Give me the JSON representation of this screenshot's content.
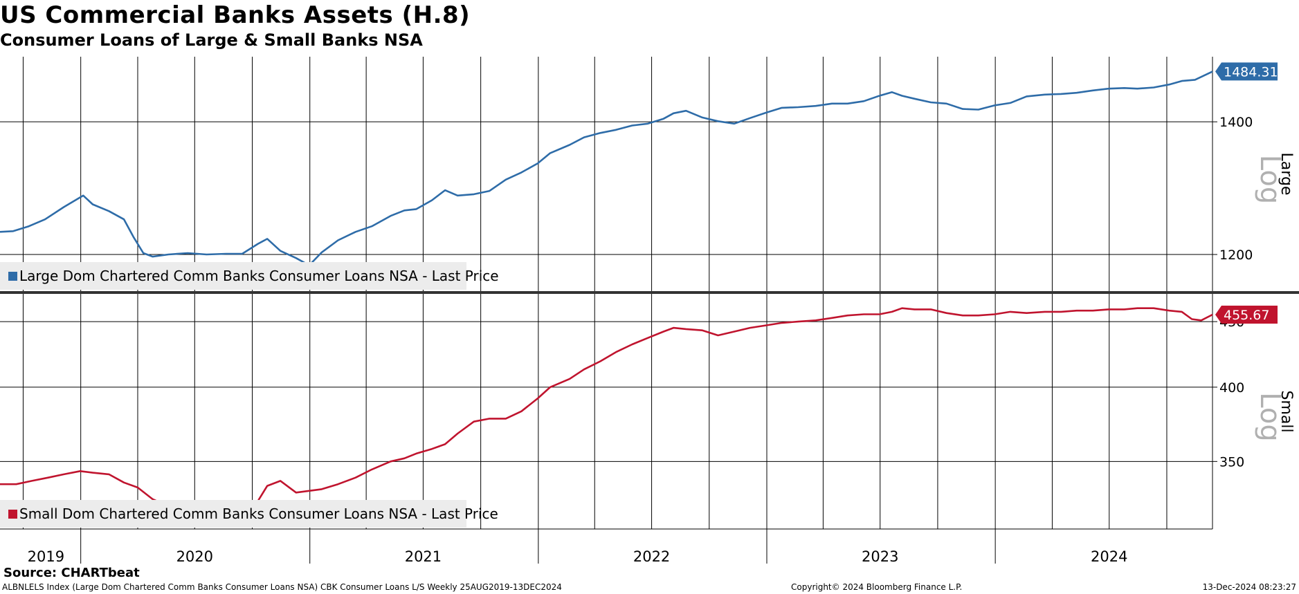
{
  "header": {
    "title": "US Commercial Banks Assets (H.8)",
    "subtitle": "Consumer Loans of Large & Small Banks NSA"
  },
  "footer": {
    "source": "Source: CHARTbeat",
    "description": "ALBNLELS Index (Large Dom Chartered Comm Banks Consumer Loans NSA) CBK Consumer Loans L/S  Weekly 25AUG2019-13DEC2024",
    "copyright": "Copyright© 2024 Bloomberg Finance L.P.",
    "timestamp": "13-Dec-2024 08:23:27"
  },
  "colors": {
    "large": "#2e6ca8",
    "small": "#c0142e",
    "grid": "#000000",
    "legend_bg": "#ececec",
    "log_text": "#b0b0b0"
  },
  "chart_data": [
    {
      "type": "line",
      "panel_label": "Large",
      "scale_label": "Log",
      "scale": "log",
      "legend": "Large Dom Chartered Comm Banks Consumer Loans NSA - Last Price",
      "legend_position": "bottom-left",
      "last_value_label": "1484.31",
      "yticks": [
        1200,
        1400
      ],
      "ylim": [
        1150,
        1510
      ],
      "xlim": [
        "2019-08-25",
        "2024-12-13"
      ],
      "grid": true,
      "series": [
        {
          "name": "Large Dom Chartered Comm Banks Consumer Loans NSA - Last Price",
          "x": [
            "2019-08-25",
            "2019-09-15",
            "2019-10-10",
            "2019-11-05",
            "2019-12-05",
            "2020-01-05",
            "2020-01-20",
            "2020-02-15",
            "2020-03-10",
            "2020-03-25",
            "2020-04-10",
            "2020-04-25",
            "2020-05-20",
            "2020-06-20",
            "2020-07-20",
            "2020-08-20",
            "2020-09-15",
            "2020-10-10",
            "2020-10-25",
            "2020-11-15",
            "2020-12-10",
            "2020-12-31",
            "2021-01-20",
            "2021-02-15",
            "2021-03-15",
            "2021-04-10",
            "2021-05-10",
            "2021-06-01",
            "2021-06-20",
            "2021-07-15",
            "2021-08-05",
            "2021-08-25",
            "2021-09-20",
            "2021-10-15",
            "2021-11-10",
            "2021-12-05",
            "2021-12-31",
            "2022-01-20",
            "2022-02-20",
            "2022-03-15",
            "2022-04-10",
            "2022-05-05",
            "2022-05-31",
            "2022-06-25",
            "2022-07-20",
            "2022-08-05",
            "2022-08-25",
            "2022-09-20",
            "2022-10-15",
            "2022-11-10",
            "2022-12-05",
            "2022-12-31",
            "2023-01-25",
            "2023-02-20",
            "2023-03-20",
            "2023-04-15",
            "2023-05-10",
            "2023-06-05",
            "2023-06-30",
            "2023-07-20",
            "2023-08-05",
            "2023-08-25",
            "2023-09-20",
            "2023-10-15",
            "2023-11-10",
            "2023-12-05",
            "2023-12-31",
            "2024-01-25",
            "2024-02-20",
            "2024-03-20",
            "2024-04-15",
            "2024-05-10",
            "2024-06-05",
            "2024-06-30",
            "2024-07-25",
            "2024-08-15",
            "2024-09-10",
            "2024-10-05",
            "2024-10-25",
            "2024-11-15",
            "2024-12-13"
          ],
          "values": [
            1232,
            1233,
            1240,
            1250,
            1268,
            1285,
            1272,
            1262,
            1250,
            1225,
            1202,
            1197,
            1200,
            1202,
            1200,
            1201,
            1201,
            1215,
            1222,
            1205,
            1195,
            1185,
            1203,
            1220,
            1232,
            1240,
            1255,
            1263,
            1265,
            1278,
            1293,
            1285,
            1287,
            1292,
            1309,
            1320,
            1334,
            1350,
            1363,
            1375,
            1382,
            1387,
            1394,
            1397,
            1405,
            1414,
            1418,
            1407,
            1401,
            1397,
            1406,
            1415,
            1423,
            1424,
            1426,
            1430,
            1430,
            1434,
            1443,
            1449,
            1443,
            1438,
            1432,
            1430,
            1421,
            1420,
            1427,
            1431,
            1442,
            1445,
            1446,
            1448,
            1452,
            1455,
            1456,
            1455,
            1457,
            1462,
            1468,
            1470,
            1484.31
          ]
        }
      ]
    },
    {
      "type": "line",
      "panel_label": "Small",
      "scale_label": "Log",
      "scale": "log",
      "legend": "Small Dom Chartered Comm Banks Consumer Loans NSA - Last Price",
      "legend_position": "bottom-left",
      "last_value_label": "455.67",
      "yticks": [
        350,
        400,
        450
      ],
      "ylim": [
        310,
        473
      ],
      "xlim": [
        "2019-08-25",
        "2024-12-13"
      ],
      "grid": true,
      "series": [
        {
          "name": "Small Dom Chartered Comm Banks Consumer Loans NSA - Last Price",
          "x": [
            "2019-08-25",
            "2019-09-20",
            "2019-10-15",
            "2019-11-10",
            "2019-12-05",
            "2019-12-31",
            "2020-01-20",
            "2020-02-15",
            "2020-03-10",
            "2020-04-01",
            "2020-04-25",
            "2020-05-20",
            "2020-06-20",
            "2020-07-20",
            "2020-08-20",
            "2020-09-15",
            "2020-10-10",
            "2020-10-25",
            "2020-11-15",
            "2020-12-10",
            "2020-12-31",
            "2021-01-20",
            "2021-02-15",
            "2021-03-15",
            "2021-04-10",
            "2021-05-10",
            "2021-06-01",
            "2021-06-20",
            "2021-07-15",
            "2021-08-05",
            "2021-08-25",
            "2021-09-20",
            "2021-10-15",
            "2021-11-10",
            "2021-12-05",
            "2021-12-31",
            "2022-01-20",
            "2022-02-20",
            "2022-03-15",
            "2022-04-10",
            "2022-05-05",
            "2022-05-31",
            "2022-06-25",
            "2022-07-20",
            "2022-08-05",
            "2022-08-25",
            "2022-09-20",
            "2022-10-15",
            "2022-11-10",
            "2022-12-05",
            "2022-12-31",
            "2023-01-25",
            "2023-02-20",
            "2023-03-20",
            "2023-04-15",
            "2023-05-10",
            "2023-06-05",
            "2023-06-30",
            "2023-07-20",
            "2023-08-05",
            "2023-08-25",
            "2023-09-20",
            "2023-10-15",
            "2023-11-10",
            "2023-12-05",
            "2023-12-31",
            "2024-01-25",
            "2024-02-20",
            "2024-03-20",
            "2024-04-15",
            "2024-05-10",
            "2024-06-05",
            "2024-06-30",
            "2024-07-25",
            "2024-08-15",
            "2024-09-10",
            "2024-10-05",
            "2024-10-25",
            "2024-11-10",
            "2024-11-25",
            "2024-12-13"
          ],
          "values": [
            336,
            336,
            338,
            340,
            342,
            344,
            343,
            342,
            337,
            334,
            327,
            323,
            323,
            324,
            325,
            326,
            326,
            335,
            338,
            331,
            332,
            333,
            336,
            340,
            345,
            350,
            352,
            355,
            358,
            361,
            368,
            376,
            378,
            378,
            383,
            392,
            400,
            406,
            413,
            419,
            426,
            432,
            437,
            442,
            445,
            444,
            443,
            439,
            442,
            445,
            447,
            449,
            450,
            451,
            453,
            455,
            456,
            456,
            458,
            461,
            460,
            460,
            457,
            455,
            455,
            456,
            458,
            457,
            458,
            458,
            459,
            459,
            460,
            460,
            461,
            461,
            459,
            458,
            452,
            451,
            455.67
          ]
        }
      ]
    }
  ],
  "x_axis": {
    "year_labels": [
      "2019",
      "2020",
      "2021",
      "2022",
      "2023",
      "2024"
    ]
  }
}
